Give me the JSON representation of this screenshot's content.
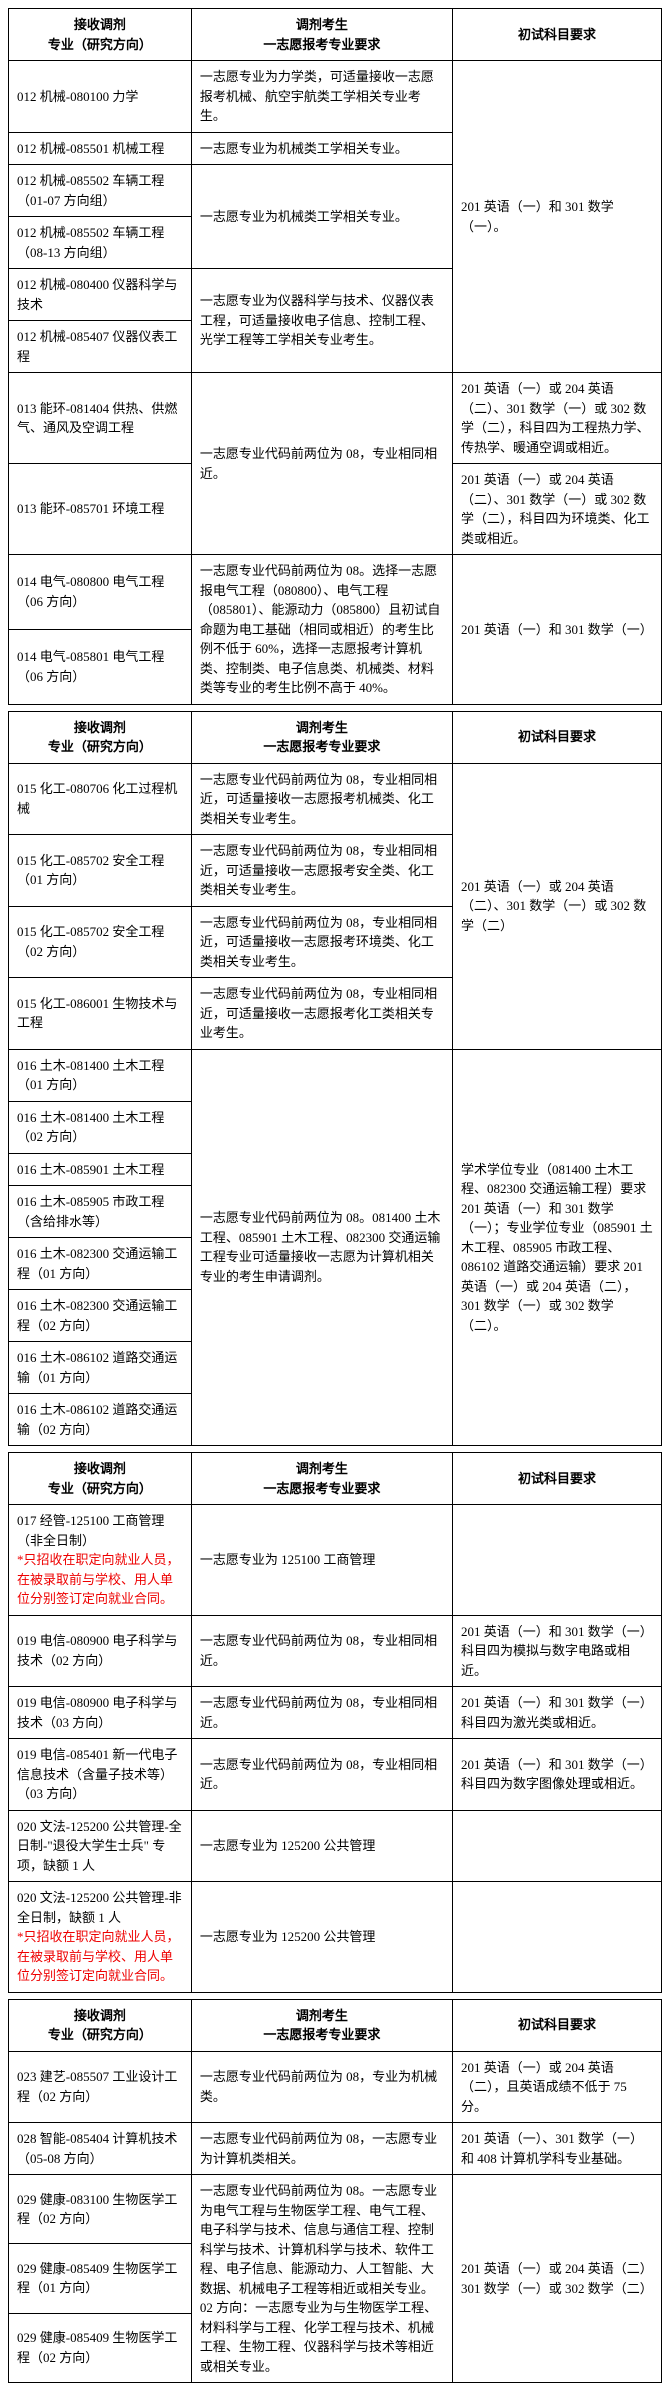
{
  "headers": {
    "col1_l1": "接收调剂",
    "col1_l2": "专业（研究方向）",
    "col2_l1": "调剂考生",
    "col2_l2": "一志愿报考专业要求",
    "col3": "初试科目要求"
  },
  "t1": {
    "r1": {
      "c1": "012 机械-080100 力学",
      "c2": "一志愿专业为力学类，可适量接收一志愿报考机械、航空宇航类工学相关专业考生。"
    },
    "r2": {
      "c1": "012 机械-085501 机械工程",
      "c2": "一志愿专业为机械类工学相关专业。"
    },
    "r3": {
      "c1": "012 机械-085502 车辆工程（01-07 方向组）"
    },
    "r4": {
      "c1": "012 机械-085502 车辆工程（08-13 方向组）",
      "c2": "一志愿专业为机械类工学相关专业。"
    },
    "r5": {
      "c1": "012 机械-080400 仪器科学与技术"
    },
    "r6": {
      "c1": "012 机械-085407 仪器仪表工程",
      "c2": "一志愿专业为仪器科学与技术、仪器仪表工程，可适量接收电子信息、控制工程、光学工程等工学相关专业考生。"
    },
    "right1": "201 英语（一）和 301 数学（一）。",
    "r7": {
      "c1": "013 能环-081404 供热、供燃气、通风及空调工程",
      "c3": "201 英语（一）或 204 英语（二）、301 数学（一）或 302 数学（二），科目四为工程热力学、传热学、暖通空调或相近。"
    },
    "r8": {
      "c1": "013 能环-085701 环境工程",
      "c2": "一志愿专业代码前两位为 08，专业相同相近。",
      "c3": "201 英语（一）或 204 英语（二）、301 数学（一）或 302 数学（二），科目四为环境类、化工类或相近。"
    },
    "r9": {
      "c1": "014 电气-080800 电气工程（06 方向）"
    },
    "r10": {
      "c1": "014 电气-085801 电气工程（06 方向）",
      "c2": "一志愿专业代码前两位为 08。选择一志愿报电气工程（080800）、电气工程（085801）、能源动力（085800）且初试自命题为电工基础（相同或相近）的考生比例不低于 60%，选择一志愿报考计算机类、控制类、电子信息类、机械类、材料类等专业的考生比例不高于 40%。",
      "c3": "201 英语（一）和 301 数学（一）"
    }
  },
  "t2": {
    "r1": {
      "c1": "015 化工-080706 化工过程机械",
      "c2": "一志愿专业代码前两位为 08，专业相同相近，可适量接收一志愿报考机械类、化工类相关专业考生。"
    },
    "r2": {
      "c1": "015 化工-085702 安全工程（01 方向）",
      "c2": "一志愿专业代码前两位为 08，专业相同相近，可适量接收一志愿报考安全类、化工类相关专业考生。"
    },
    "r3": {
      "c1": "015 化工-085702 安全工程（02 方向）",
      "c2": "一志愿专业代码前两位为 08，专业相同相近，可适量接收一志愿报考环境类、化工类相关专业考生。"
    },
    "r4": {
      "c1": "015 化工-086001 生物技术与工程",
      "c2": "一志愿专业代码前两位为 08，专业相同相近，可适量接收一志愿报考化工类相关专业考生。"
    },
    "right1": "201 英语（一）或 204 英语（二）、301 数学（一）或 302 数学（二）",
    "r5": {
      "c1": "016 土木-081400 土木工程（01 方向）"
    },
    "r6": {
      "c1": "016 土木-081400 土木工程（02 方向）"
    },
    "r7": {
      "c1": "016 土木-085901 土木工程"
    },
    "r8": {
      "c1": "016 土木-085905 市政工程（含给排水等）"
    },
    "r9": {
      "c1": "016 土木-082300 交通运输工程（01 方向）"
    },
    "r10": {
      "c1": "016 土木-082300 交通运输工程（02 方向）"
    },
    "r11": {
      "c1": "016 土木-086102 道路交通运输（01 方向）"
    },
    "r12": {
      "c1": "016 土木-086102 道路交通运输（02 方向）"
    },
    "mid2": "一志愿专业代码前两位为 08。081400 土木工程、085901 土木工程、082300 交通运输工程专业可适量接收一志愿为计算机相关专业的考生申请调剂。",
    "right2": "学术学位专业（081400 土木工程、082300 交通运输工程）要求 201 英语（一）和 301 数学（一）；专业学位专业（085901 土木工程、085905 市政工程、086102 道路交通运输）要求 201 英语（一）或 204 英语（二），301 数学（一）或 302 数学（二）。"
  },
  "t3": {
    "r1": {
      "c1": "017 经管-125100 工商管理（非全日制）",
      "note": "*只招收在职定向就业人员，在被录取前与学校、用人单位分别签订定向就业合同。",
      "c2": "一志愿专业为 125100 工商管理"
    },
    "r2": {
      "c1": "019 电信-080900 电子科学与技术（02 方向）",
      "c2": "一志愿专业代码前两位为 08，专业相同相近。",
      "c3": "201 英语（一）和 301 数学（一）科目四为模拟与数字电路或相近。"
    },
    "r3": {
      "c1": "019 电信-080900 电子科学与技术（03 方向）",
      "c2": "一志愿专业代码前两位为 08，专业相同相近。",
      "c3": "201 英语（一）和 301 数学（一）科目四为激光类或相近。"
    },
    "r4": {
      "c1": "019 电信-085401 新一代电子信息技术（含量子技术等）（03 方向）",
      "c2": "一志愿专业代码前两位为 08，专业相同相近。",
      "c3": "201 英语（一）和 301 数学（一）科目四为数字图像处理或相近。"
    },
    "r5": {
      "c1": "020 文法-125200 公共管理-全日制-\"退役大学生士兵\" 专项，缺额 1 人",
      "c2": "一志愿专业为 125200 公共管理"
    },
    "r6": {
      "c1": "020 文法-125200 公共管理-非全日制，缺额 1 人",
      "note": "*只招收在职定向就业人员，在被录取前与学校、用人单位分别签订定向就业合同。",
      "c2": "一志愿专业为 125200 公共管理"
    }
  },
  "t4": {
    "r1": {
      "c1": "023 建艺-085507 工业设计工程（02 方向）",
      "c2": "一志愿专业代码前两位为 08，专业为机械类。",
      "c3": "201 英语（一）或 204 英语（二），且英语成绩不低于 75 分。"
    },
    "r2": {
      "c1": "028 智能-085404 计算机技术（05-08 方向）",
      "c2": "一志愿专业代码前两位为 08，一志愿专业为计算机类相关。",
      "c3": "201 英语（一）、301 数学（一）和 408 计算机学科专业基础。"
    },
    "r3": {
      "c1": "029 健康-083100 生物医学工程（02 方向）"
    },
    "r4": {
      "c1": "029 健康-085409 生物医学工程（01 方向）"
    },
    "r5": {
      "c1": "029 健康-085409 生物医学工程（02 方向）"
    },
    "mid": "一志愿专业代码前两位为 08。一志愿专业为电气工程与生物医学工程、电气工程、电子科学与技术、信息与通信工程、控制科学与技术、计算机科学与技术、软件工程、电子信息、能源动力、人工智能、大数据、机械电子工程等相近或相关专业。02 方向：一志愿专业为与生物医学工程、材料科学与工程、化学工程与技术、机械工程、生物工程、仪器科学与技术等相近或相关专业。",
    "right": "201 英语（一）或 204 英语（二）301 数学（一）或 302 数学（二）"
  }
}
